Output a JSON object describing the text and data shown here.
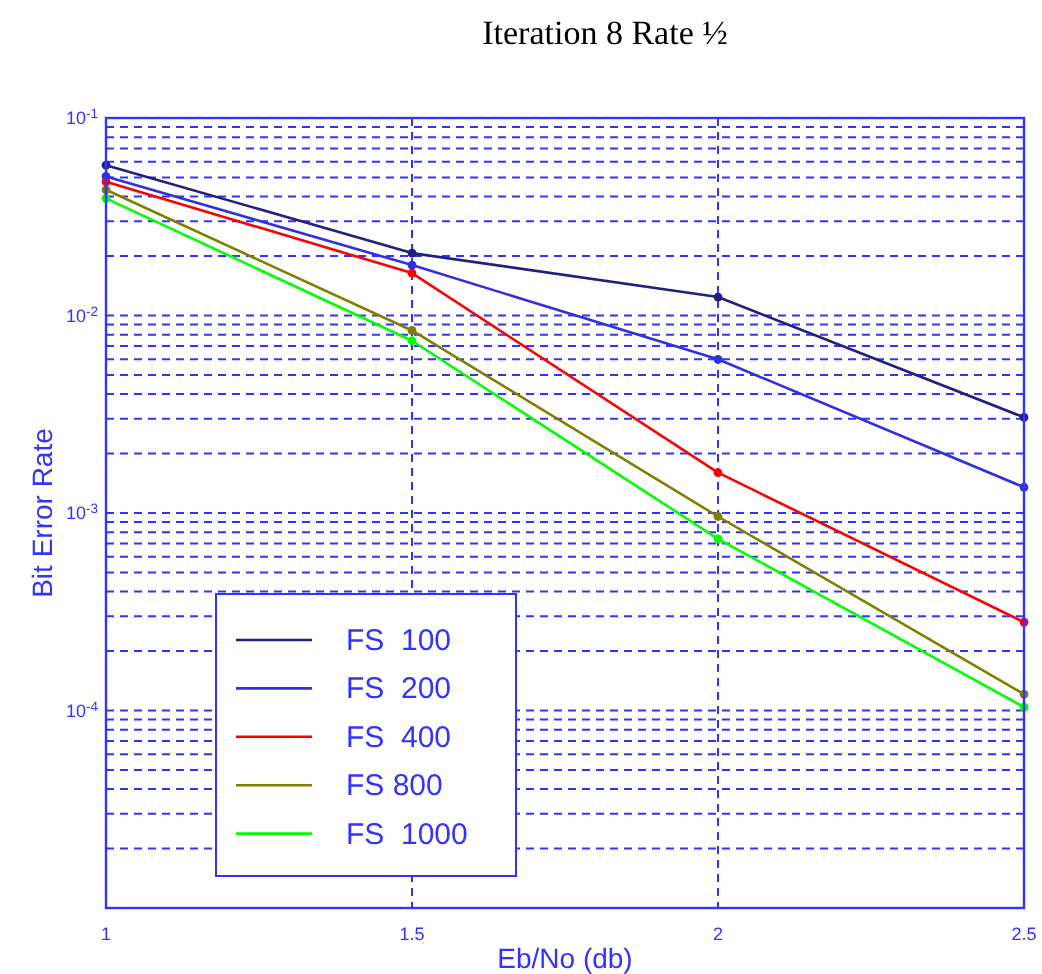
{
  "chart_data": {
    "type": "line",
    "title": "Iteration 8 Rate ½",
    "xlabel": "Eb/No (db)",
    "ylabel": "Bit Error Rate",
    "x": [
      1,
      1.5,
      2,
      2.5
    ],
    "series": [
      {
        "name": "FS  100",
        "color": "#202080",
        "values": [
          0.0577,
          0.0207,
          0.0124,
          0.00305
        ]
      },
      {
        "name": "FS  200",
        "color": "#3030e0",
        "values": [
          0.0506,
          0.018,
          0.006,
          0.00135
        ]
      },
      {
        "name": "FS  400",
        "color": "#ff0000",
        "values": [
          0.0475,
          0.0164,
          0.0016,
          0.00028
        ]
      },
      {
        "name": "FS 800",
        "color": "#808000",
        "values": [
          0.0433,
          0.0084,
          0.00096,
          0.000121
        ]
      },
      {
        "name": "FS  1000",
        "color": "#00ff00",
        "values": [
          0.0392,
          0.00745,
          0.00074,
          0.000104
        ]
      }
    ],
    "xlim": [
      1,
      2.5
    ],
    "xticks": [
      1,
      1.5,
      2,
      2.5
    ],
    "ylim": [
      1e-05,
      0.1
    ],
    "yticks": [
      {
        "value": 1e-05,
        "label": null
      },
      {
        "value": 0.0001,
        "label": "10$^{-4}$"
      },
      {
        "value": 0.001,
        "label": "10$^{-3}$"
      },
      {
        "value": 0.01,
        "label": "10$^{-2}$"
      },
      {
        "value": 0.1,
        "label": "10$^{-1}$"
      }
    ],
    "log": "y",
    "grid": true,
    "legend": "bottom left",
    "marker": "circle",
    "line_style": "solid"
  }
}
